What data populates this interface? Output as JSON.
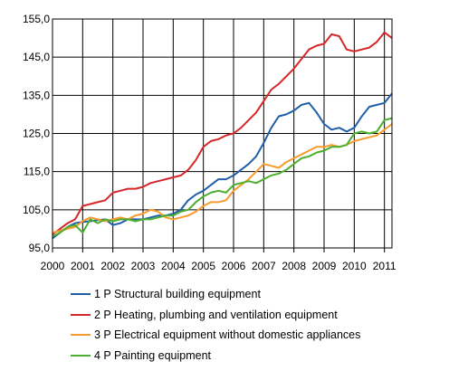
{
  "chart_data": {
    "type": "line",
    "title": "",
    "xlabel": "",
    "ylabel": "",
    "x_ticks": [
      "2000",
      "2001",
      "2002",
      "2003",
      "2004",
      "2005",
      "2006",
      "2007",
      "2008",
      "2009",
      "2010",
      "2011"
    ],
    "y_ticks": [
      "95,0",
      "105,0",
      "115,0",
      "125,0",
      "135,0",
      "145,0",
      "155,0"
    ],
    "xlim": [
      2000,
      2011.25
    ],
    "ylim": [
      95,
      155
    ],
    "grid": "vertical lines at years, horizontal lines at y ticks",
    "legend_position": "below",
    "series": [
      {
        "name": "1 P Structural building equipment",
        "color": "#1f5fa8",
        "points": [
          [
            2000.0,
            97.5
          ],
          [
            2000.25,
            99.0
          ],
          [
            2000.5,
            100.5
          ],
          [
            2000.75,
            101.5
          ],
          [
            2001.0,
            101.8
          ],
          [
            2001.25,
            102.0
          ],
          [
            2001.5,
            102.3
          ],
          [
            2001.75,
            102.5
          ],
          [
            2002.0,
            101.0
          ],
          [
            2002.25,
            101.5
          ],
          [
            2002.5,
            102.5
          ],
          [
            2002.75,
            102.5
          ],
          [
            2003.0,
            102.5
          ],
          [
            2003.25,
            103.0
          ],
          [
            2003.5,
            103.5
          ],
          [
            2003.75,
            103.5
          ],
          [
            2004.0,
            104.0
          ],
          [
            2004.25,
            105.0
          ],
          [
            2004.5,
            107.5
          ],
          [
            2004.75,
            109.0
          ],
          [
            2005.0,
            110.0
          ],
          [
            2005.25,
            111.5
          ],
          [
            2005.5,
            113.0
          ],
          [
            2005.75,
            113.0
          ],
          [
            2006.0,
            114.0
          ],
          [
            2006.25,
            115.5
          ],
          [
            2006.5,
            117.0
          ],
          [
            2006.75,
            119.0
          ],
          [
            2007.0,
            122.5
          ],
          [
            2007.25,
            126.5
          ],
          [
            2007.5,
            129.5
          ],
          [
            2007.75,
            130.0
          ],
          [
            2008.0,
            131.0
          ],
          [
            2008.25,
            132.5
          ],
          [
            2008.5,
            133.0
          ],
          [
            2008.75,
            130.5
          ],
          [
            2009.0,
            127.5
          ],
          [
            2009.25,
            126.0
          ],
          [
            2009.5,
            126.5
          ],
          [
            2009.75,
            125.5
          ],
          [
            2010.0,
            126.5
          ],
          [
            2010.25,
            129.5
          ],
          [
            2010.5,
            132.0
          ],
          [
            2010.75,
            132.5
          ],
          [
            2011.0,
            133.0
          ],
          [
            2011.25,
            135.5
          ]
        ]
      },
      {
        "name": "2 P Heating, plumbing and ventilation equipment",
        "color": "#d62728",
        "points": [
          [
            2000.0,
            98.5
          ],
          [
            2000.25,
            100.0
          ],
          [
            2000.5,
            101.5
          ],
          [
            2000.75,
            102.5
          ],
          [
            2001.0,
            106.0
          ],
          [
            2001.25,
            106.5
          ],
          [
            2001.5,
            107.0
          ],
          [
            2001.75,
            107.5
          ],
          [
            2002.0,
            109.5
          ],
          [
            2002.25,
            110.0
          ],
          [
            2002.5,
            110.5
          ],
          [
            2002.75,
            110.5
          ],
          [
            2003.0,
            111.0
          ],
          [
            2003.25,
            112.0
          ],
          [
            2003.5,
            112.5
          ],
          [
            2003.75,
            113.0
          ],
          [
            2004.0,
            113.5
          ],
          [
            2004.25,
            114.0
          ],
          [
            2004.5,
            115.5
          ],
          [
            2004.75,
            118.0
          ],
          [
            2005.0,
            121.5
          ],
          [
            2005.25,
            123.0
          ],
          [
            2005.5,
            123.5
          ],
          [
            2005.75,
            124.5
          ],
          [
            2006.0,
            125.0
          ],
          [
            2006.25,
            126.5
          ],
          [
            2006.5,
            128.5
          ],
          [
            2006.75,
            130.5
          ],
          [
            2007.0,
            133.5
          ],
          [
            2007.25,
            136.5
          ],
          [
            2007.5,
            138.0
          ],
          [
            2007.75,
            140.0
          ],
          [
            2008.0,
            142.0
          ],
          [
            2008.25,
            144.5
          ],
          [
            2008.5,
            147.0
          ],
          [
            2008.75,
            148.0
          ],
          [
            2009.0,
            148.5
          ],
          [
            2009.25,
            151.0
          ],
          [
            2009.5,
            150.5
          ],
          [
            2009.75,
            147.0
          ],
          [
            2010.0,
            146.5
          ],
          [
            2010.25,
            147.0
          ],
          [
            2010.5,
            147.5
          ],
          [
            2010.75,
            149.0
          ],
          [
            2011.0,
            151.5
          ],
          [
            2011.25,
            150.0
          ]
        ]
      },
      {
        "name": "3 P Electrical equipment without domestic appliances",
        "color": "#f79b2e",
        "points": [
          [
            2000.0,
            99.0
          ],
          [
            2000.25,
            99.5
          ],
          [
            2000.5,
            100.0
          ],
          [
            2000.75,
            100.5
          ],
          [
            2001.0,
            102.0
          ],
          [
            2001.25,
            103.0
          ],
          [
            2001.5,
            102.5
          ],
          [
            2001.75,
            102.0
          ],
          [
            2002.0,
            102.5
          ],
          [
            2002.25,
            103.0
          ],
          [
            2002.5,
            102.5
          ],
          [
            2002.75,
            103.5
          ],
          [
            2003.0,
            104.0
          ],
          [
            2003.25,
            105.0
          ],
          [
            2003.5,
            104.5
          ],
          [
            2003.75,
            103.0
          ],
          [
            2004.0,
            102.5
          ],
          [
            2004.25,
            103.0
          ],
          [
            2004.5,
            103.5
          ],
          [
            2004.75,
            104.5
          ],
          [
            2005.0,
            106.0
          ],
          [
            2005.25,
            107.0
          ],
          [
            2005.5,
            107.0
          ],
          [
            2005.75,
            107.5
          ],
          [
            2006.0,
            110.0
          ],
          [
            2006.25,
            111.5
          ],
          [
            2006.5,
            113.0
          ],
          [
            2006.75,
            115.0
          ],
          [
            2007.0,
            117.0
          ],
          [
            2007.25,
            116.5
          ],
          [
            2007.5,
            116.0
          ],
          [
            2007.75,
            117.5
          ],
          [
            2008.0,
            118.5
          ],
          [
            2008.25,
            119.5
          ],
          [
            2008.5,
            120.5
          ],
          [
            2008.75,
            121.5
          ],
          [
            2009.0,
            121.5
          ],
          [
            2009.25,
            122.0
          ],
          [
            2009.5,
            121.5
          ],
          [
            2009.75,
            122.0
          ],
          [
            2010.0,
            123.0
          ],
          [
            2010.25,
            123.5
          ],
          [
            2010.5,
            124.0
          ],
          [
            2010.75,
            124.5
          ],
          [
            2011.0,
            126.0
          ],
          [
            2011.25,
            127.5
          ]
        ]
      },
      {
        "name": "4 P Painting equipment",
        "color": "#4caf2e",
        "points": [
          [
            2000.0,
            98.0
          ],
          [
            2000.25,
            99.0
          ],
          [
            2000.5,
            100.5
          ],
          [
            2000.75,
            101.0
          ],
          [
            2001.0,
            99.0
          ],
          [
            2001.25,
            102.5
          ],
          [
            2001.5,
            101.5
          ],
          [
            2001.75,
            102.5
          ],
          [
            2002.0,
            102.0
          ],
          [
            2002.25,
            102.5
          ],
          [
            2002.5,
            102.5
          ],
          [
            2002.75,
            102.0
          ],
          [
            2003.0,
            102.5
          ],
          [
            2003.25,
            102.5
          ],
          [
            2003.5,
            103.0
          ],
          [
            2003.75,
            103.5
          ],
          [
            2004.0,
            103.5
          ],
          [
            2004.25,
            104.5
          ],
          [
            2004.5,
            105.0
          ],
          [
            2004.75,
            107.0
          ],
          [
            2005.0,
            108.5
          ],
          [
            2005.25,
            109.5
          ],
          [
            2005.5,
            110.0
          ],
          [
            2005.75,
            109.5
          ],
          [
            2006.0,
            111.5
          ],
          [
            2006.25,
            112.0
          ],
          [
            2006.5,
            112.5
          ],
          [
            2006.75,
            112.0
          ],
          [
            2007.0,
            113.0
          ],
          [
            2007.25,
            114.0
          ],
          [
            2007.5,
            114.5
          ],
          [
            2007.75,
            115.5
          ],
          [
            2008.0,
            117.0
          ],
          [
            2008.25,
            118.5
          ],
          [
            2008.5,
            119.0
          ],
          [
            2008.75,
            120.0
          ],
          [
            2009.0,
            120.5
          ],
          [
            2009.25,
            121.5
          ],
          [
            2009.5,
            121.5
          ],
          [
            2009.75,
            122.0
          ],
          [
            2010.0,
            125.0
          ],
          [
            2010.25,
            125.5
          ],
          [
            2010.5,
            125.0
          ],
          [
            2010.75,
            125.5
          ],
          [
            2011.0,
            128.5
          ],
          [
            2011.25,
            129.0
          ]
        ]
      }
    ]
  }
}
